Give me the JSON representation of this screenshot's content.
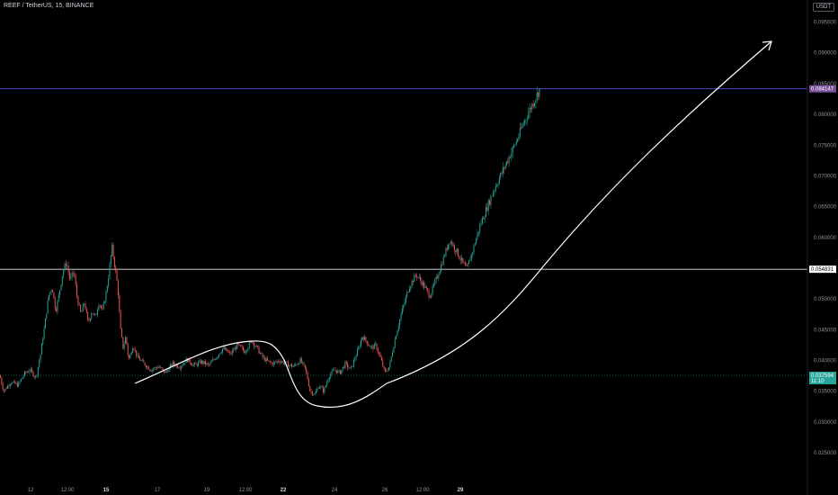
{
  "header": {
    "symbol_title": "REEF / TetherUS, 15, BINANCE",
    "currency": "USDT"
  },
  "colors": {
    "background": "#000000",
    "up": "#26a69a",
    "down": "#ef5350",
    "resistance_line": "#e6e6e6",
    "top_line": "#4b4fd9",
    "current_line": "#26a69a",
    "arrow": "#ffffff",
    "top_label_bg": "#7a4f99",
    "current_label_bg": "#26a69a"
  },
  "chart_data": {
    "type": "candlestick",
    "title": "REEF / TetherUS, 15, BINANCE",
    "ylabel": "USDT",
    "ylim": [
      0.0218,
      0.098
    ],
    "y_ticks": [
      "0.095000",
      "0.090000",
      "0.085000",
      "0.080000",
      "0.075000",
      "0.070000",
      "0.065000",
      "0.060000",
      "0.050000",
      "0.045000",
      "0.040000",
      "0.035000",
      "0.030000",
      "0.025000"
    ],
    "x_ticks": [
      {
        "label": "12",
        "bold": false
      },
      {
        "label": "12:00",
        "bold": false
      },
      {
        "label": "15",
        "bold": true
      },
      {
        "label": "17",
        "bold": false
      },
      {
        "label": "19",
        "bold": false
      },
      {
        "label": "12:00",
        "bold": false
      },
      {
        "label": "22",
        "bold": true
      },
      {
        "label": "24",
        "bold": false
      },
      {
        "label": "26",
        "bold": false
      },
      {
        "label": "12:00",
        "bold": false
      },
      {
        "label": "29",
        "bold": true
      }
    ],
    "price_path": [
      [
        0.0,
        0.0375
      ],
      [
        4.0,
        0.035
      ],
      [
        12.0,
        0.0365
      ],
      [
        20.0,
        0.036
      ],
      [
        27.0,
        0.0378
      ],
      [
        33.0,
        0.0385
      ],
      [
        40.0,
        0.0372
      ],
      [
        45.0,
        0.041
      ],
      [
        50.0,
        0.046
      ],
      [
        54.0,
        0.0505
      ],
      [
        58.0,
        0.052
      ],
      [
        62.0,
        0.048
      ],
      [
        66.0,
        0.051
      ],
      [
        70.0,
        0.0545
      ],
      [
        74.0,
        0.056
      ],
      [
        78.0,
        0.053
      ],
      [
        82.0,
        0.0545
      ],
      [
        86.0,
        0.05
      ],
      [
        90.0,
        0.0475
      ],
      [
        94.0,
        0.0495
      ],
      [
        98.0,
        0.046
      ],
      [
        102.0,
        0.048
      ],
      [
        106.0,
        0.047
      ],
      [
        110.0,
        0.0495
      ],
      [
        114.0,
        0.048
      ],
      [
        118.0,
        0.051
      ],
      [
        121.0,
        0.054
      ],
      [
        124.5,
        0.0585
      ],
      [
        128.0,
        0.055
      ],
      [
        131.0,
        0.052
      ],
      [
        134.0,
        0.045
      ],
      [
        137.0,
        0.042
      ],
      [
        140.0,
        0.044
      ],
      [
        143.0,
        0.04
      ],
      [
        148.0,
        0.0425
      ],
      [
        153.0,
        0.0405
      ],
      [
        160.0,
        0.0395
      ],
      [
        168.0,
        0.0385
      ],
      [
        176.0,
        0.039
      ],
      [
        184.0,
        0.038
      ],
      [
        192.0,
        0.0395
      ],
      [
        200.0,
        0.039
      ],
      [
        208.0,
        0.0402
      ],
      [
        216.0,
        0.0392
      ],
      [
        224.0,
        0.0398
      ],
      [
        232.0,
        0.0392
      ],
      [
        240.0,
        0.0405
      ],
      [
        248.0,
        0.042
      ],
      [
        256.0,
        0.041
      ],
      [
        264.0,
        0.0425
      ],
      [
        272.0,
        0.0415
      ],
      [
        280.0,
        0.0432
      ],
      [
        286.0,
        0.042
      ],
      [
        292.0,
        0.0405
      ],
      [
        298.0,
        0.0398
      ],
      [
        304.0,
        0.0395
      ],
      [
        310.0,
        0.04
      ],
      [
        318.0,
        0.0395
      ],
      [
        326.0,
        0.039
      ],
      [
        334.0,
        0.04
      ],
      [
        340.0,
        0.0385
      ],
      [
        345.0,
        0.035
      ],
      [
        350.0,
        0.0345
      ],
      [
        355.0,
        0.036
      ],
      [
        360.0,
        0.035
      ],
      [
        366.0,
        0.0375
      ],
      [
        372.0,
        0.0385
      ],
      [
        378.0,
        0.038
      ],
      [
        384.0,
        0.0395
      ],
      [
        390.0,
        0.0385
      ],
      [
        395.0,
        0.0405
      ],
      [
        399.0,
        0.042
      ],
      [
        403.0,
        0.044
      ],
      [
        408.0,
        0.043
      ],
      [
        413.0,
        0.042
      ],
      [
        418.0,
        0.0425
      ],
      [
        424.0,
        0.04
      ],
      [
        428.0,
        0.038
      ],
      [
        433.0,
        0.039
      ],
      [
        440.0,
        0.044
      ],
      [
        447.0,
        0.048
      ],
      [
        455.0,
        0.052
      ],
      [
        463.0,
        0.054
      ],
      [
        470.0,
        0.0525
      ],
      [
        478.0,
        0.0505
      ],
      [
        486.0,
        0.0535
      ],
      [
        493.0,
        0.0565
      ],
      [
        500.0,
        0.0596
      ],
      [
        507.0,
        0.058
      ],
      [
        514.0,
        0.056
      ],
      [
        519.0,
        0.0548
      ],
      [
        526.0,
        0.058
      ],
      [
        534.0,
        0.062
      ],
      [
        542.0,
        0.065
      ],
      [
        550.0,
        0.068
      ],
      [
        558.0,
        0.0705
      ],
      [
        566.0,
        0.073
      ],
      [
        574.0,
        0.0755
      ],
      [
        582.0,
        0.0785
      ],
      [
        590.0,
        0.081
      ],
      [
        595.0,
        0.0825
      ],
      [
        600.0,
        0.0841
      ]
    ],
    "horizontal_lines": [
      {
        "value": 0.084147,
        "label": "0.084147",
        "color": "#4b4fd9"
      },
      {
        "value": 0.054831,
        "label": "0.054831",
        "color": "#e6e6e6"
      },
      {
        "value": 0.037594,
        "label": "0.037594",
        "time": "11:10",
        "color": "#26a69a"
      }
    ],
    "annotations": [
      {
        "type": "curve",
        "shape": "cup-and-handle"
      },
      {
        "type": "arrow",
        "shape": "projection-up",
        "color": "#ffffff"
      }
    ],
    "grid": false
  }
}
